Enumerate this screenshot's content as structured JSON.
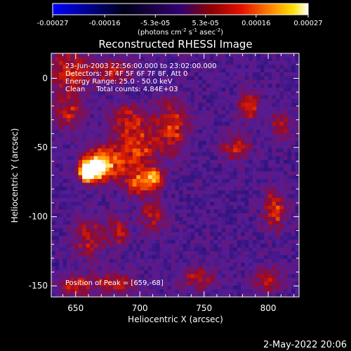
{
  "chart_data": {
    "type": "heatmap",
    "title": "Reconstructed RHESSI Image",
    "xlabel": "Heliocentric X (arcsec)",
    "ylabel": "Heliocentric Y (arcsec)",
    "xlim": [
      631,
      824
    ],
    "ylim": [
      -158,
      18
    ],
    "x_ticks": [
      "650",
      "700",
      "750",
      "800"
    ],
    "x_tick_values": [
      650,
      700,
      750,
      800
    ],
    "y_ticks": [
      "0",
      "-50",
      "-100",
      "-150"
    ],
    "y_tick_values": [
      0,
      -50,
      -100,
      -150
    ],
    "colorbar": {
      "ticks": [
        "-0.00027",
        "-0.00016",
        "-5.3e-05",
        "5.3e-05",
        "0.00016",
        "0.00027"
      ],
      "tick_values": [
        -0.00027,
        -0.00016,
        -5.3e-05,
        5.3e-05,
        0.00016,
        0.00027
      ],
      "range": [
        -0.00027,
        0.00027
      ],
      "units_label": "(photons cm",
      "units_sup1": "-2",
      "units_mid": " s",
      "units_sup2": "-1",
      "units_end": " asec",
      "units_sup3": "-2",
      "units_close": ")",
      "colormap": "RHESSI color table 3 (blue-black-purple-red-yellow-white)"
    },
    "annotations": [
      "23-Jun-2003 22:56:00.000 to 23:02:00.000",
      "Detectors: 3F 4F 5F 6F 7F 8F, Att 0",
      "Energy Range: 25.0 - 50.0 keV",
      "Clean     Total counts: 4.84E+03"
    ],
    "peak_label": "Position of Peak = [659,-68]",
    "peak_position": [
      659,
      -68
    ],
    "emission_blobs": [
      {
        "x": 659,
        "y": -68,
        "amp": 1.0,
        "sx": 4,
        "sy": 4
      },
      {
        "x": 665,
        "y": -65,
        "amp": 0.75,
        "sx": 7,
        "sy": 6
      },
      {
        "x": 675,
        "y": -60,
        "amp": 0.45,
        "sx": 12,
        "sy": 9
      },
      {
        "x": 700,
        "y": -75,
        "amp": 0.45,
        "sx": 8,
        "sy": 7
      },
      {
        "x": 712,
        "y": -72,
        "amp": 0.5,
        "sx": 5,
        "sy": 5
      },
      {
        "x": 700,
        "y": -50,
        "amp": 0.38,
        "sx": 10,
        "sy": 10
      },
      {
        "x": 725,
        "y": -35,
        "amp": 0.38,
        "sx": 9,
        "sy": 14
      },
      {
        "x": 690,
        "y": -30,
        "amp": 0.33,
        "sx": 10,
        "sy": 8
      },
      {
        "x": 645,
        "y": 5,
        "amp": 0.38,
        "sx": 12,
        "sy": 10
      },
      {
        "x": 680,
        "y": 5,
        "amp": 0.33,
        "sx": 10,
        "sy": 6
      },
      {
        "x": 645,
        "y": -25,
        "amp": 0.3,
        "sx": 8,
        "sy": 10
      },
      {
        "x": 710,
        "y": -100,
        "amp": 0.3,
        "sx": 7,
        "sy": 8
      },
      {
        "x": 683,
        "y": -110,
        "amp": 0.3,
        "sx": 6,
        "sy": 8
      },
      {
        "x": 660,
        "y": -115,
        "amp": 0.35,
        "sx": 8,
        "sy": 10
      },
      {
        "x": 650,
        "y": -150,
        "amp": 0.32,
        "sx": 10,
        "sy": 6
      },
      {
        "x": 680,
        "y": -148,
        "amp": 0.3,
        "sx": 10,
        "sy": 6
      },
      {
        "x": 785,
        "y": -20,
        "amp": 0.35,
        "sx": 6,
        "sy": 8
      },
      {
        "x": 775,
        "y": -50,
        "amp": 0.35,
        "sx": 8,
        "sy": 6
      },
      {
        "x": 810,
        "y": -35,
        "amp": 0.3,
        "sx": 6,
        "sy": 8
      },
      {
        "x": 805,
        "y": -95,
        "amp": 0.4,
        "sx": 6,
        "sy": 10
      },
      {
        "x": 745,
        "y": -145,
        "amp": 0.33,
        "sx": 10,
        "sy": 6
      },
      {
        "x": 800,
        "y": -145,
        "amp": 0.32,
        "sx": 8,
        "sy": 6
      }
    ]
  },
  "footer": {
    "timestamp": "2-May-2022 20:06"
  },
  "colors": {
    "background": "#000000",
    "text": "#ffffff",
    "axis": "#ffffff"
  }
}
